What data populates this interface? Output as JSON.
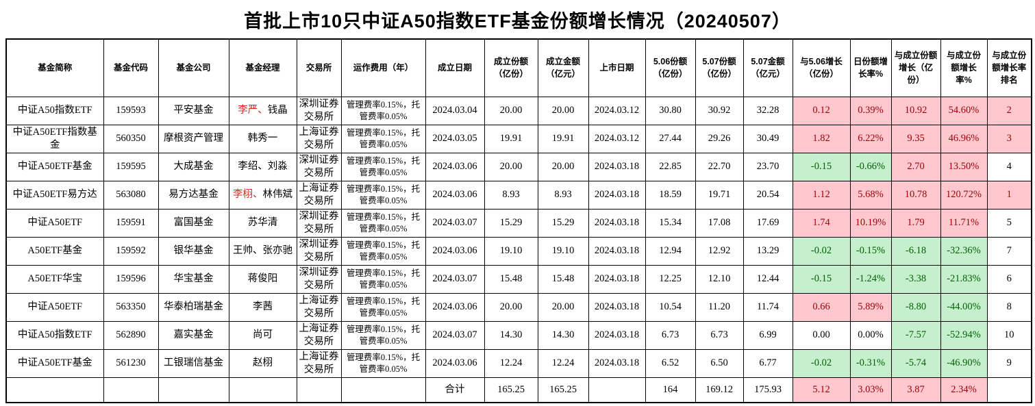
{
  "title": "首批上市10只中证A50指数ETF基金份额增长情况（20240507）",
  "colors": {
    "highlight_pink_bg": "#ffc7ce",
    "highlight_pink_text": "#9c0006",
    "highlight_green_bg": "#c6efce",
    "highlight_green_text": "#006100",
    "manager_red_text": "#d22c21"
  },
  "chart_data": {
    "type": "table",
    "title": "首批上市10只中证A50指数ETF基金份额增长情况（20240507）",
    "columns": [
      "基金简称",
      "基金代码",
      "基金公司",
      "基金经理",
      "交易所",
      "运作费用（年）",
      "成立日期",
      "成立份额（亿份）",
      "成立金额（亿元）",
      "上市日期",
      "5.06份额（亿份）",
      "5.07份额（亿份）",
      "5.07金额（亿元）",
      "与5.06增长（亿份）",
      "日份额增长率%",
      "与成立份额增长（亿份）",
      "与成立份额增长率%",
      "与成立份额增长率排名"
    ],
    "rows": [
      {
        "cells": [
          "中证A50指数ETF",
          "159593",
          "平安基金",
          "李严、钱晶",
          "深圳证券交易所",
          "管理费率0.15%，托管费率0.05%",
          "2024.03.04",
          "20.00",
          "20.00",
          "2024.03.12",
          "30.80",
          "30.92",
          "32.28",
          "0.12",
          "0.39%",
          "10.92",
          "54.60%",
          "2"
        ],
        "manager_red": "李严、",
        "highlights": [
          "pink",
          "pink",
          "pink",
          "pink",
          "pink"
        ]
      },
      {
        "cells": [
          "中证A50ETF指数基金",
          "560350",
          "摩根资产管理",
          "韩秀一",
          "上海证券交易所",
          "管理费率0.15%，托管费率0.05%",
          "2024.03.05",
          "19.91",
          "19.91",
          "2024.03.12",
          "27.44",
          "29.26",
          "30.49",
          "1.82",
          "6.22%",
          "9.35",
          "46.96%",
          "3"
        ],
        "manager_red": "",
        "highlights": [
          "pink",
          "pink",
          "pink",
          "pink",
          "pink"
        ]
      },
      {
        "cells": [
          "中证A50ETF基金",
          "159595",
          "大成基金",
          "李绍、刘淼",
          "深圳证券交易所",
          "管理费率0.15%，托管费率0.05%",
          "2024.03.06",
          "20.00",
          "20.00",
          "2024.03.18",
          "22.85",
          "22.70",
          "23.70",
          "-0.15",
          "-0.66%",
          "2.70",
          "13.50%",
          "4"
        ],
        "manager_red": "",
        "highlights": [
          "green",
          "green",
          "pink",
          "pink",
          "plain"
        ]
      },
      {
        "cells": [
          "中证A50ETF易方达",
          "563080",
          "易方达基金",
          "李栩、林伟斌",
          "上海证券交易所",
          "管理费率0.15%，托管费率0.05%",
          "2024.03.06",
          "8.93",
          "8.93",
          "2024.03.18",
          "18.59",
          "19.71",
          "20.54",
          "1.12",
          "5.68%",
          "10.78",
          "120.72%",
          "1"
        ],
        "manager_red": "李栩、",
        "highlights": [
          "pink",
          "pink",
          "pink",
          "pink",
          "pink"
        ]
      },
      {
        "cells": [
          "中证A50ETF",
          "159591",
          "富国基金",
          "苏华清",
          "深圳证券交易所",
          "管理费率0.15%，托管费率0.05%",
          "2024.03.07",
          "15.29",
          "15.29",
          "2024.03.18",
          "15.34",
          "17.08",
          "17.69",
          "1.74",
          "10.19%",
          "1.79",
          "11.71%",
          "5"
        ],
        "manager_red": "",
        "highlights": [
          "pink",
          "pink",
          "pink",
          "pink",
          "plain"
        ]
      },
      {
        "cells": [
          "A50ETF基金",
          "159592",
          "银华基金",
          "王帅、张亦驰",
          "深圳证券交易所",
          "管理费率0.15%，托管费率0.05%",
          "2024.03.06",
          "19.10",
          "19.10",
          "2024.03.18",
          "12.94",
          "12.92",
          "13.29",
          "-0.02",
          "-0.15%",
          "-6.18",
          "-32.36%",
          "7"
        ],
        "manager_red": "",
        "highlights": [
          "green",
          "green",
          "green",
          "green",
          "plain"
        ]
      },
      {
        "cells": [
          "A50ETF华宝",
          "159596",
          "华宝基金",
          "蒋俊阳",
          "深圳证券交易所",
          "管理费率0.15%，托管费率0.05%",
          "2024.03.07",
          "15.48",
          "15.48",
          "2024.03.18",
          "12.25",
          "12.10",
          "12.44",
          "-0.15",
          "-1.24%",
          "-3.38",
          "-21.83%",
          "6"
        ],
        "manager_red": "",
        "highlights": [
          "green",
          "green",
          "green",
          "green",
          "plain"
        ]
      },
      {
        "cells": [
          "中证A50ETF",
          "563350",
          "华泰柏瑞基金",
          "李茜",
          "上海证券交易所",
          "管理费率0.15%，托管费率0.05%",
          "2024.03.06",
          "20.00",
          "20.00",
          "2024.03.18",
          "10.54",
          "11.20",
          "11.74",
          "0.66",
          "5.89%",
          "-8.80",
          "-44.00%",
          "8"
        ],
        "manager_red": "",
        "highlights": [
          "pink",
          "pink",
          "green",
          "green",
          "plain"
        ]
      },
      {
        "cells": [
          "中证A50指数ETF",
          "562890",
          "嘉实基金",
          "尚可",
          "上海证券交易所",
          "管理费率0.15%，托管费率0.05%",
          "2024.03.07",
          "14.30",
          "14.30",
          "2024.03.18",
          "6.73",
          "6.73",
          "6.99",
          "0.00",
          "0.00%",
          "-7.57",
          "-52.94%",
          "10"
        ],
        "manager_red": "",
        "highlights": [
          "plain",
          "plain",
          "green",
          "green",
          "plain"
        ]
      },
      {
        "cells": [
          "中证A50ETF基金",
          "561230",
          "工银瑞信基金",
          "赵栩",
          "上海证券交易所",
          "管理费率0.15%，托管费率0.05%",
          "2024.03.06",
          "12.24",
          "12.24",
          "2024.03.18",
          "6.52",
          "6.50",
          "6.77",
          "-0.02",
          "-0.31%",
          "-5.74",
          "-46.90%",
          "9"
        ],
        "manager_red": "",
        "highlights": [
          "green",
          "green",
          "green",
          "green",
          "plain"
        ]
      }
    ],
    "total_row": {
      "cells": [
        "",
        "",
        "",
        "",
        "",
        "",
        "合计",
        "165.25",
        "165.25",
        "",
        "164",
        "169.12",
        "175.93",
        "5.12",
        "3.03%",
        "3.87",
        "2.34%",
        ""
      ],
      "manager_red": "",
      "highlights": [
        "pink",
        "pink",
        "pink",
        "pink",
        "plain"
      ]
    }
  }
}
